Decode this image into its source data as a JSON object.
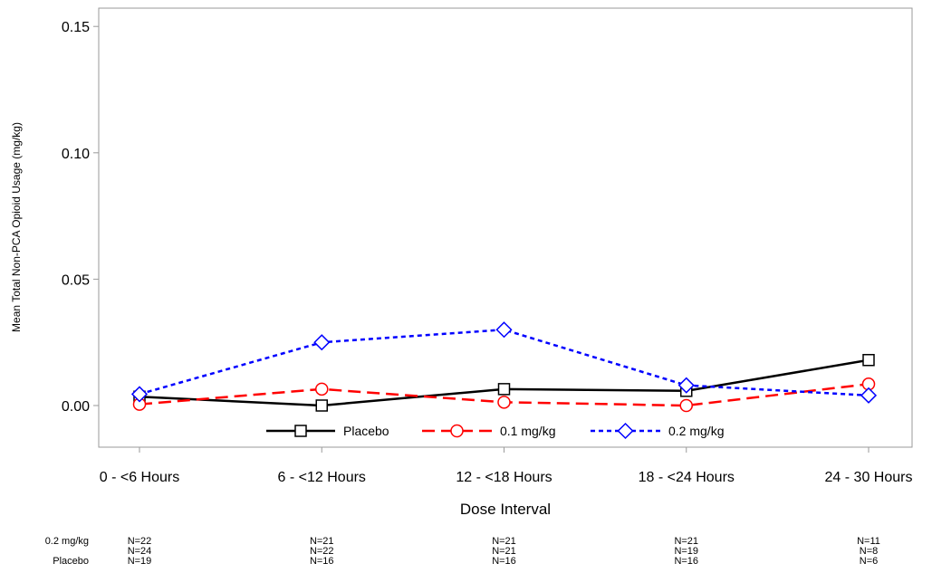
{
  "chart_data": {
    "type": "line",
    "title": "",
    "xlabel": "Dose Interval",
    "ylabel": "Mean Total Non-PCA Opioid Usage (mg/kg)",
    "categories": [
      "0 - <6 Hours",
      "6 - <12 Hours",
      "12 - <18 Hours",
      "18 - <24 Hours",
      "24 - 30 Hours"
    ],
    "ylim": [
      -0.017,
      0.16
    ],
    "yticks": [
      0.0,
      0.05,
      0.1,
      0.15
    ],
    "ytick_labels": [
      "0.00",
      "0.05",
      "0.10",
      "0.15"
    ],
    "grid": false,
    "legend_position": "bottom-center-inside",
    "series": [
      {
        "name": "Placebo",
        "values": [
          0.0035,
          0.0,
          0.0065,
          0.0058,
          0.018
        ],
        "color": "#000000",
        "marker": "square",
        "dash": "solid"
      },
      {
        "name": "0.1 mg/kg",
        "values": [
          0.0005,
          0.0065,
          0.0013,
          0.0,
          0.0085
        ],
        "color": "#ff0000",
        "marker": "circle",
        "dash": "dashed"
      },
      {
        "name": "0.2 mg/kg",
        "values": [
          0.0045,
          0.025,
          0.03,
          0.008,
          0.004
        ],
        "color": "#0000ff",
        "marker": "diamond",
        "dash": "dotted"
      }
    ],
    "n_table": {
      "row_labels": [
        "0.2 mg/kg",
        "",
        "Placebo"
      ],
      "rows": [
        [
          "N=22",
          "N=21",
          "N=21",
          "N=21",
          "N=11"
        ],
        [
          "N=24",
          "N=22",
          "N=21",
          "N=19",
          "N=8"
        ],
        [
          "N=19",
          "N=16",
          "N=16",
          "N=16",
          "N=6"
        ]
      ]
    }
  }
}
